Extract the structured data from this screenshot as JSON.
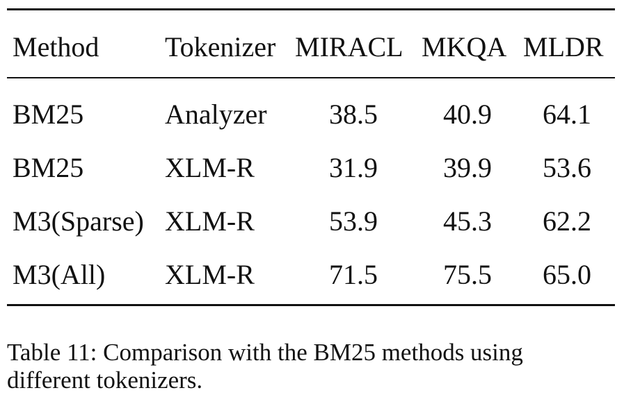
{
  "table": {
    "headers": [
      "Method",
      "Tokenizer",
      "MIRACL",
      "MKQA",
      "MLDR"
    ],
    "rows": [
      [
        "BM25",
        "Analyzer",
        "38.5",
        "40.9",
        "64.1"
      ],
      [
        "BM25",
        "XLM-R",
        "31.9",
        "39.9",
        "53.6"
      ],
      [
        "M3(Sparse)",
        "XLM-R",
        "53.9",
        "45.3",
        "62.2"
      ],
      [
        "M3(All)",
        "XLM-R",
        "71.5",
        "75.5",
        "65.0"
      ]
    ]
  },
  "caption": {
    "line1": "Table 11: Comparison with the BM25 methods using",
    "line2": "different tokenizers."
  }
}
